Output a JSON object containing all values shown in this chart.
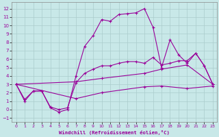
{
  "xlabel": "Windchill (Refroidissement éolien,°C)",
  "bg_color": "#c8e8e8",
  "line_color": "#990099",
  "grid_color": "#aacccc",
  "xlim": [
    -0.5,
    23.5
  ],
  "ylim": [
    -1.5,
    12.8
  ],
  "yticks": [
    -1,
    0,
    1,
    2,
    3,
    4,
    5,
    6,
    7,
    8,
    9,
    10,
    11,
    12
  ],
  "xticks": [
    0,
    1,
    2,
    3,
    4,
    5,
    6,
    7,
    8,
    9,
    10,
    11,
    12,
    13,
    14,
    15,
    16,
    17,
    18,
    19,
    20,
    21,
    22,
    23
  ],
  "series1": [
    [
      0,
      3
    ],
    [
      1,
      1
    ],
    [
      2,
      2.2
    ],
    [
      3,
      2.2
    ],
    [
      4,
      0.2
    ],
    [
      5,
      -0.3
    ],
    [
      6,
      0.0
    ],
    [
      7,
      4.0
    ],
    [
      8,
      7.5
    ],
    [
      9,
      8.8
    ],
    [
      10,
      10.7
    ],
    [
      11,
      10.5
    ],
    [
      12,
      11.3
    ],
    [
      13,
      11.4
    ],
    [
      14,
      11.5
    ],
    [
      15,
      12.0
    ],
    [
      16,
      9.8
    ],
    [
      17,
      5.0
    ],
    [
      18,
      8.3
    ],
    [
      19,
      6.5
    ],
    [
      20,
      5.5
    ],
    [
      21,
      6.7
    ],
    [
      22,
      5.2
    ],
    [
      23,
      3.0
    ]
  ],
  "series2": [
    [
      0,
      3.0
    ],
    [
      1,
      1.2
    ],
    [
      2,
      2.2
    ],
    [
      3,
      2.2
    ],
    [
      4,
      0.3
    ],
    [
      5,
      0.0
    ],
    [
      6,
      0.2
    ],
    [
      7,
      3.2
    ],
    [
      8,
      4.3
    ],
    [
      9,
      4.8
    ],
    [
      10,
      5.2
    ],
    [
      11,
      5.2
    ],
    [
      12,
      5.5
    ],
    [
      13,
      5.7
    ],
    [
      14,
      5.7
    ],
    [
      15,
      5.5
    ],
    [
      16,
      6.2
    ],
    [
      17,
      5.3
    ],
    [
      18,
      5.5
    ],
    [
      19,
      5.8
    ],
    [
      20,
      5.8
    ],
    [
      21,
      6.7
    ],
    [
      22,
      5.2
    ],
    [
      23,
      3.0
    ]
  ],
  "series3": [
    [
      0,
      3.0
    ],
    [
      7,
      3.3
    ],
    [
      10,
      3.7
    ],
    [
      15,
      4.3
    ],
    [
      17,
      4.8
    ],
    [
      20,
      5.3
    ],
    [
      23,
      3.0
    ]
  ],
  "series4": [
    [
      0,
      3.0
    ],
    [
      7,
      1.3
    ],
    [
      10,
      2.0
    ],
    [
      15,
      2.7
    ],
    [
      17,
      2.8
    ],
    [
      20,
      2.5
    ],
    [
      23,
      2.8
    ]
  ]
}
